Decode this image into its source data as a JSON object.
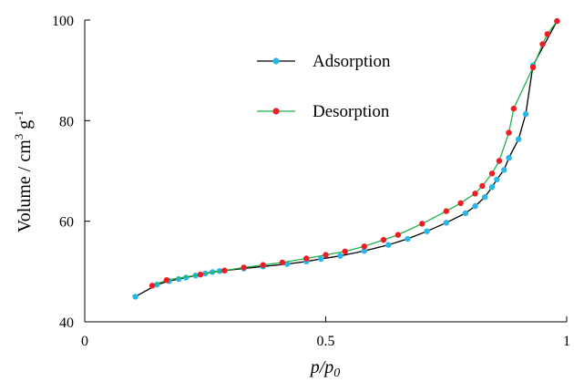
{
  "chart_data": {
    "type": "line",
    "xlabel": "p/p",
    "xlabel_sub": "0",
    "ylabel": "Volume / cm",
    "ylabel_sup1": "3",
    "ylabel_mid": " g",
    "ylabel_sup2": "-1",
    "xlim": [
      0,
      1
    ],
    "ylim": [
      40,
      100
    ],
    "x_ticks": [
      {
        "value": 0,
        "label": "0"
      },
      {
        "value": 0.5,
        "label": "0.5"
      },
      {
        "value": 1,
        "label": "1"
      }
    ],
    "y_ticks": [
      {
        "value": 40,
        "label": "40"
      },
      {
        "value": 60,
        "label": "60"
      },
      {
        "value": 80,
        "label": "80"
      },
      {
        "value": 100,
        "label": "100"
      }
    ],
    "grid": false,
    "legend_position": "top-center",
    "series": [
      {
        "name": "Adsorption",
        "line_color": "#000000",
        "marker_color": "#29b6e8",
        "points": [
          [
            0.105,
            45.0
          ],
          [
            0.15,
            47.4
          ],
          [
            0.175,
            48.1
          ],
          [
            0.195,
            48.5
          ],
          [
            0.21,
            48.8
          ],
          [
            0.23,
            49.2
          ],
          [
            0.25,
            49.6
          ],
          [
            0.265,
            49.9
          ],
          [
            0.28,
            50.1
          ],
          [
            0.33,
            50.6
          ],
          [
            0.37,
            51.0
          ],
          [
            0.42,
            51.5
          ],
          [
            0.46,
            52.0
          ],
          [
            0.49,
            52.5
          ],
          [
            0.53,
            53.1
          ],
          [
            0.58,
            54.1
          ],
          [
            0.63,
            55.3
          ],
          [
            0.67,
            56.5
          ],
          [
            0.71,
            58.0
          ],
          [
            0.75,
            59.7
          ],
          [
            0.79,
            61.6
          ],
          [
            0.81,
            63.0
          ],
          [
            0.83,
            64.8
          ],
          [
            0.845,
            66.8
          ],
          [
            0.855,
            68.3
          ],
          [
            0.87,
            70.2
          ],
          [
            0.88,
            72.6
          ],
          [
            0.9,
            76.3
          ],
          [
            0.915,
            81.3
          ],
          [
            0.93,
            91.0
          ],
          [
            0.98,
            99.8
          ]
        ]
      },
      {
        "name": "Desorption",
        "line_color": "#22b14c",
        "marker_color": "#ee1c24",
        "points": [
          [
            0.14,
            47.2
          ],
          [
            0.17,
            48.3
          ],
          [
            0.24,
            49.4
          ],
          [
            0.29,
            50.2
          ],
          [
            0.33,
            50.8
          ],
          [
            0.37,
            51.3
          ],
          [
            0.41,
            51.8
          ],
          [
            0.46,
            52.6
          ],
          [
            0.5,
            53.3
          ],
          [
            0.54,
            54.0
          ],
          [
            0.58,
            55.0
          ],
          [
            0.62,
            56.3
          ],
          [
            0.65,
            57.3
          ],
          [
            0.7,
            59.5
          ],
          [
            0.75,
            62.0
          ],
          [
            0.78,
            63.6
          ],
          [
            0.81,
            65.5
          ],
          [
            0.825,
            67.0
          ],
          [
            0.845,
            69.5
          ],
          [
            0.86,
            72.0
          ],
          [
            0.88,
            77.6
          ],
          [
            0.89,
            82.4
          ],
          [
            0.93,
            90.6
          ],
          [
            0.95,
            95.2
          ],
          [
            0.96,
            97.2
          ],
          [
            0.98,
            99.8
          ]
        ]
      }
    ]
  }
}
